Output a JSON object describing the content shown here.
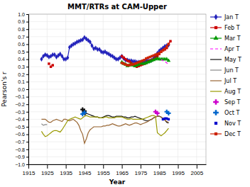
{
  "chart_data": {
    "type": "line",
    "title": "MMT/RTRs at CAM-Upper",
    "xlabel": "Year",
    "ylabel": "Pearson's r",
    "xlim": [
      1915,
      2010
    ],
    "ylim": [
      -1.0,
      1.0
    ],
    "xticks": [
      1915,
      1925,
      1935,
      1945,
      1955,
      1965,
      1975,
      1985,
      1995,
      2005
    ],
    "yticks": [
      {
        "value": -1.0,
        "label": "−1.0"
      },
      {
        "value": -0.9,
        "label": "−0.9"
      },
      {
        "value": -0.8,
        "label": "−0.8"
      },
      {
        "value": -0.7,
        "label": "−0.7"
      },
      {
        "value": -0.6,
        "label": "−0.6"
      },
      {
        "value": -0.5,
        "label": "−0.5"
      },
      {
        "value": -0.4,
        "label": "−0.4"
      },
      {
        "value": -0.3,
        "label": "−0.3"
      },
      {
        "value": -0.2,
        "label": "−0.2"
      },
      {
        "value": -0.1,
        "label": "−0.1"
      },
      {
        "value": 0.0,
        "label": "0.0"
      },
      0.1,
      0.2,
      0.3,
      0.4,
      0.5,
      0.6,
      0.7,
      0.8,
      0.9,
      {
        "value": 1.0,
        "label": "1.0"
      }
    ],
    "grid": true,
    "legend": "right",
    "series": [
      {
        "name": "Jan T",
        "type": "line",
        "color": "#2222bb",
        "marker": "diamond",
        "line_style": "solid",
        "x": [
          1922,
          1923,
          1924,
          1925,
          1926,
          1927,
          1928,
          1929,
          1930,
          1931,
          1932,
          1933,
          1934,
          1935,
          1936,
          1937,
          1938,
          1939,
          1940,
          1941,
          1942,
          1943,
          1944,
          1945,
          1946,
          1947,
          1948,
          1949,
          1950,
          1951,
          1952,
          1953,
          1954,
          1955,
          1956,
          1957,
          1958,
          1959,
          1960,
          1961,
          1962,
          1963,
          1964,
          1965,
          1966,
          1967,
          1968,
          1969,
          1970,
          1971,
          1972,
          1973,
          1974,
          1975,
          1976,
          1977,
          1978,
          1979,
          1980,
          1981,
          1982,
          1983,
          1984,
          1985,
          1986,
          1987,
          1988,
          1989,
          1990
        ],
        "values": [
          0.4,
          0.44,
          0.46,
          0.45,
          0.43,
          0.44,
          0.46,
          0.46,
          0.43,
          0.45,
          0.47,
          0.44,
          0.4,
          0.4,
          0.42,
          0.56,
          0.58,
          0.6,
          0.61,
          0.63,
          0.64,
          0.65,
          0.66,
          0.69,
          0.67,
          0.65,
          0.63,
          0.58,
          0.54,
          0.55,
          0.53,
          0.53,
          0.5,
          0.49,
          0.5,
          0.48,
          0.47,
          0.45,
          0.44,
          0.42,
          0.4,
          0.4,
          0.42,
          0.44,
          0.41,
          0.39,
          0.39,
          0.38,
          0.38,
          0.37,
          0.37,
          0.36,
          0.36,
          0.36,
          0.36,
          0.37,
          0.38,
          0.38,
          0.38,
          0.39,
          0.41,
          0.45,
          0.48,
          0.51,
          0.53,
          0.55,
          0.57,
          0.58,
          0.59
        ]
      },
      {
        "name": "Feb T",
        "type": "line",
        "color": "#cc0000",
        "marker": "square",
        "line_style": "solid",
        "x": [
          1965,
          1966,
          1967,
          1968,
          1969,
          1970,
          1971,
          1972,
          1973,
          1974,
          1975,
          1976,
          1977,
          1978,
          1979,
          1980,
          1981,
          1982,
          1983,
          1984,
          1985,
          1986,
          1987,
          1988,
          1989,
          1990,
          1991
        ],
        "values": [
          0.44,
          0.42,
          0.4,
          0.38,
          0.37,
          0.35,
          0.33,
          0.31,
          0.3,
          0.31,
          0.32,
          0.33,
          0.34,
          0.35,
          0.37,
          0.38,
          0.39,
          0.4,
          0.42,
          0.44,
          0.47,
          0.5,
          0.52,
          0.53,
          0.55,
          0.6,
          0.64
        ]
      },
      {
        "type": "scatter",
        "color": "#cc0000",
        "marker": "square",
        "x": [
          1926,
          1927,
          1928
        ],
        "values": [
          0.34,
          0.3,
          0.32
        ]
      },
      {
        "name": "Mar T",
        "type": "line",
        "color": "#009900",
        "marker": "triangle",
        "line_style": "solid",
        "x": [
          1965,
          1966,
          1967,
          1968,
          1969,
          1970,
          1971,
          1972,
          1973,
          1974,
          1975,
          1976,
          1977,
          1978,
          1979,
          1980,
          1981,
          1982,
          1983,
          1984,
          1985,
          1986,
          1987,
          1988,
          1989,
          1990
        ],
        "values": [
          0.36,
          0.34,
          0.33,
          0.31,
          0.32,
          0.33,
          0.32,
          0.31,
          0.32,
          0.33,
          0.35,
          0.34,
          0.34,
          0.35,
          0.36,
          0.37,
          0.38,
          0.39,
          0.4,
          0.41,
          0.4,
          0.4,
          0.4,
          0.4,
          0.4,
          0.38
        ]
      },
      {
        "name": "Apr T",
        "type": "line",
        "color": "#ff00ff",
        "line_style": "dashed",
        "x": [
          1986,
          1987,
          1988,
          1989,
          1990
        ],
        "values": [
          0.4,
          0.38,
          0.37,
          0.35,
          0.33
        ]
      },
      {
        "name": "May T",
        "type": "line",
        "color": "#111111",
        "line_style": "solid",
        "x": [
          1945,
          1946,
          1947,
          1948,
          1949,
          1950,
          1951,
          1952,
          1953,
          1954,
          1955,
          1956,
          1957,
          1958,
          1959,
          1960,
          1961,
          1962,
          1963,
          1964,
          1965,
          1966,
          1967,
          1968,
          1969,
          1970,
          1971,
          1972,
          1973,
          1974,
          1975,
          1976,
          1977,
          1978,
          1979,
          1980,
          1981,
          1982,
          1983,
          1984,
          1985,
          1986,
          1987,
          1988,
          1989,
          1990
        ],
        "values": [
          -0.35,
          -0.32,
          -0.33,
          -0.34,
          -0.35,
          -0.36,
          -0.37,
          -0.37,
          -0.38,
          -0.38,
          -0.37,
          -0.36,
          -0.35,
          -0.35,
          -0.36,
          -0.37,
          -0.37,
          -0.36,
          -0.36,
          -0.36,
          -0.36,
          -0.37,
          -0.37,
          -0.38,
          -0.38,
          -0.37,
          -0.37,
          -0.36,
          -0.37,
          -0.38,
          -0.39,
          -0.4,
          -0.41,
          -0.42,
          -0.42,
          -0.41,
          -0.4,
          -0.38,
          -0.37,
          -0.36,
          -0.36,
          -0.37,
          -0.39,
          -0.41,
          -0.44,
          -0.45
        ]
      },
      {
        "type": "scatter",
        "color": "#111111",
        "marker": "plus",
        "x": [
          1944,
          1945
        ],
        "values": [
          -0.27,
          -0.29
        ]
      },
      {
        "name": "Jun T",
        "type": "line",
        "color": "#888888",
        "line_style": "solid",
        "x": [
          1922,
          1923,
          1924,
          1925
        ],
        "values": [
          -0.46,
          -0.48,
          -0.47,
          -0.47
        ]
      },
      {
        "name": "Jul T",
        "type": "line",
        "color": "#996633",
        "line_style": "solid",
        "x": [
          1922,
          1923,
          1924,
          1925,
          1926,
          1927,
          1928,
          1929,
          1930,
          1931,
          1932,
          1933,
          1934,
          1935,
          1936,
          1937,
          1938,
          1939,
          1940,
          1941,
          1942,
          1943,
          1944,
          1945,
          1946,
          1947,
          1948,
          1949,
          1950,
          1951,
          1952,
          1953,
          1954,
          1955,
          1956,
          1957,
          1958,
          1959,
          1960,
          1961,
          1962,
          1963,
          1964,
          1965,
          1966,
          1967,
          1968,
          1969,
          1970,
          1971,
          1972,
          1973,
          1974,
          1975,
          1976,
          1977,
          1978,
          1979,
          1980,
          1981,
          1982,
          1983,
          1984,
          1985,
          1986,
          1987,
          1988,
          1989,
          1990
        ],
        "values": [
          -0.4,
          -0.4,
          -0.4,
          -0.42,
          -0.44,
          -0.44,
          -0.42,
          -0.41,
          -0.4,
          -0.41,
          -0.42,
          -0.43,
          -0.4,
          -0.4,
          -0.41,
          -0.42,
          -0.41,
          -0.4,
          -0.42,
          -0.44,
          -0.48,
          -0.55,
          -0.6,
          -0.72,
          -0.66,
          -0.58,
          -0.54,
          -0.52,
          -0.5,
          -0.5,
          -0.5,
          -0.5,
          -0.5,
          -0.49,
          -0.49,
          -0.48,
          -0.48,
          -0.47,
          -0.46,
          -0.47,
          -0.48,
          -0.49,
          -0.49,
          -0.48,
          -0.47,
          -0.46,
          -0.47,
          -0.48,
          -0.47,
          -0.46,
          -0.45,
          -0.45,
          -0.46,
          -0.47,
          -0.46,
          -0.45,
          -0.44,
          -0.43,
          -0.41,
          -0.4,
          -0.38,
          -0.37,
          -0.36,
          -0.36,
          -0.37,
          -0.39,
          -0.41,
          -0.43,
          -0.44
        ]
      },
      {
        "name": "Aug T",
        "type": "line",
        "color": "#999900",
        "line_style": "solid",
        "x": [
          1922,
          1923,
          1924,
          1925,
          1926,
          1927,
          1928,
          1929,
          1930,
          1931,
          1932,
          1933,
          1934,
          1935,
          1936,
          1937,
          1938,
          1939,
          1940,
          1941,
          1942,
          1943,
          1944,
          1945,
          1946,
          1947,
          1948,
          1949,
          1950,
          1951,
          1952,
          1953,
          1954,
          1955,
          1956,
          1957,
          1958,
          1959,
          1960,
          1961,
          1962,
          1963,
          1964,
          1965,
          1966,
          1967,
          1968,
          1969,
          1970,
          1971,
          1972,
          1973,
          1974,
          1975,
          1976,
          1977,
          1978,
          1979,
          1980,
          1981,
          1982,
          1983,
          1984,
          1985,
          1986,
          1987,
          1988,
          1989,
          1990
        ],
        "values": [
          -0.56,
          -0.6,
          -0.63,
          -0.62,
          -0.6,
          -0.58,
          -0.56,
          -0.55,
          -0.55,
          -0.56,
          -0.57,
          -0.54,
          -0.5,
          -0.46,
          -0.42,
          -0.4,
          -0.39,
          -0.38,
          -0.37,
          -0.38,
          -0.39,
          -0.4,
          -0.38,
          -0.36,
          -0.35,
          -0.36,
          -0.37,
          -0.37,
          -0.37,
          -0.37,
          -0.37,
          -0.38,
          -0.38,
          -0.38,
          -0.37,
          -0.37,
          -0.38,
          -0.38,
          -0.38,
          -0.38,
          -0.37,
          -0.37,
          -0.37,
          -0.37,
          -0.38,
          -0.39,
          -0.4,
          -0.4,
          -0.39,
          -0.4,
          -0.4,
          -0.4,
          -0.4,
          -0.4,
          -0.4,
          -0.39,
          -0.38,
          -0.37,
          -0.36,
          -0.35,
          -0.35,
          -0.36,
          -0.58,
          -0.6,
          -0.62,
          -0.6,
          -0.58,
          -0.55,
          -0.52
        ]
      },
      {
        "name": "Sep T",
        "type": "scatter",
        "color": "#cc00cc",
        "marker": "plus",
        "x": [
          1983,
          1984
        ],
        "values": [
          -0.3,
          -0.32
        ]
      },
      {
        "name": "Oct T",
        "type": "scatter",
        "color": "#0066cc",
        "marker": "plus",
        "x": [
          1944,
          1945,
          1989,
          1990
        ],
        "values": [
          -0.33,
          -0.31,
          -0.3,
          -0.32
        ]
      },
      {
        "name": "Nov T",
        "type": "scatter",
        "color": "#0000cc",
        "marker": "square",
        "x": [
          1987,
          1988,
          1989,
          1990
        ],
        "values": [
          -0.4,
          -0.39,
          -0.39,
          -0.4
        ]
      },
      {
        "name": "Dec T",
        "type": "line",
        "color": "#cc2200",
        "marker": "square",
        "line_style": "solid",
        "x": [
          1965,
          1966,
          1967,
          1968,
          1969,
          1970,
          1971,
          1972,
          1973,
          1974,
          1975,
          1976,
          1977,
          1978,
          1979,
          1980,
          1981,
          1982,
          1983,
          1984,
          1985,
          1986,
          1987,
          1988,
          1989,
          1990
        ],
        "values": [
          0.35,
          0.34,
          0.33,
          0.32,
          0.32,
          0.33,
          0.33,
          0.34,
          0.35,
          0.36,
          0.37,
          0.38,
          0.39,
          0.41,
          0.42,
          0.43,
          0.44,
          0.45,
          0.46,
          0.47,
          0.48,
          0.5,
          0.52,
          0.54,
          0.57,
          0.6
        ]
      }
    ]
  }
}
